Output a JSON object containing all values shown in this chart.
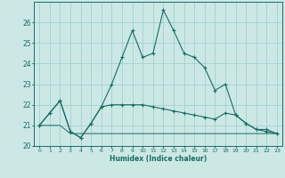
{
  "xlabel": "Humidex (Indice chaleur)",
  "xlim": [
    -0.5,
    23.5
  ],
  "ylim": [
    20,
    27
  ],
  "yticks": [
    20,
    21,
    22,
    23,
    24,
    25,
    26
  ],
  "xticks": [
    0,
    1,
    2,
    3,
    4,
    5,
    6,
    7,
    8,
    9,
    10,
    11,
    12,
    13,
    14,
    15,
    16,
    17,
    18,
    19,
    20,
    21,
    22,
    23
  ],
  "bg_color": "#cce8e5",
  "grid_color": "#99ccca",
  "line_color": "#1a6b66",
  "line1_x": [
    0,
    1,
    2,
    3,
    4,
    5,
    6,
    7,
    8,
    9,
    10,
    11,
    12,
    13,
    14,
    15,
    16,
    17,
    18,
    19,
    20,
    21,
    22,
    23
  ],
  "line1_y": [
    21.0,
    21.6,
    22.2,
    20.7,
    20.4,
    21.1,
    21.9,
    23.0,
    24.3,
    25.6,
    24.3,
    24.5,
    26.6,
    25.6,
    24.5,
    24.3,
    23.8,
    22.7,
    23.0,
    21.5,
    21.1,
    20.8,
    20.8,
    20.6
  ],
  "line2_x": [
    0,
    1,
    2,
    3,
    4,
    5,
    6,
    7,
    8,
    9,
    10,
    11,
    12,
    13,
    14,
    15,
    16,
    17,
    18,
    19,
    20,
    21,
    22,
    23
  ],
  "line2_y": [
    21.0,
    21.6,
    22.2,
    20.7,
    20.4,
    21.1,
    21.9,
    22.0,
    22.0,
    22.0,
    22.0,
    21.9,
    21.8,
    21.7,
    21.6,
    21.5,
    21.4,
    21.3,
    21.6,
    21.5,
    21.1,
    20.8,
    20.7,
    20.6
  ],
  "line3_x": [
    0,
    1,
    2,
    3,
    4,
    5,
    6,
    7,
    8,
    9,
    10,
    11,
    12,
    13,
    14,
    15,
    16,
    17,
    18,
    19,
    20,
    21,
    22,
    23
  ],
  "line3_y": [
    21.0,
    21.0,
    21.0,
    20.6,
    20.6,
    20.6,
    20.6,
    20.6,
    20.6,
    20.6,
    20.6,
    20.6,
    20.6,
    20.6,
    20.6,
    20.6,
    20.6,
    20.6,
    20.6,
    20.6,
    20.6,
    20.6,
    20.6,
    20.6
  ]
}
